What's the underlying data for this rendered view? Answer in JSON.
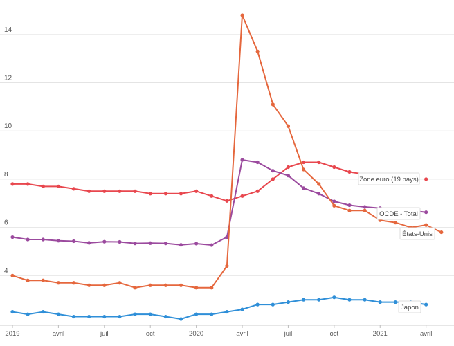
{
  "chart_data": {
    "type": "line",
    "title": "",
    "xlabel": "",
    "ylabel": "",
    "grid": true,
    "ylim": [
      2,
      15.2
    ],
    "y_ticks": [
      4,
      6,
      8,
      10,
      12,
      14
    ],
    "x_tick_labels": [
      {
        "m": 0,
        "label": "2019"
      },
      {
        "m": 3,
        "label": "avril"
      },
      {
        "m": 6,
        "label": "juil"
      },
      {
        "m": 9,
        "label": "oct"
      },
      {
        "m": 12,
        "label": "2020"
      },
      {
        "m": 15,
        "label": "avril"
      },
      {
        "m": 18,
        "label": "juil"
      },
      {
        "m": 21,
        "label": "oct"
      },
      {
        "m": 24,
        "label": "2021"
      },
      {
        "m": 27,
        "label": "avril"
      }
    ],
    "x_months": [
      0,
      1,
      2,
      3,
      4,
      5,
      6,
      7,
      8,
      9,
      10,
      11,
      12,
      13,
      14,
      15,
      16,
      17,
      18,
      19,
      20,
      21,
      22,
      23,
      24,
      25,
      26,
      27,
      28
    ],
    "series": [
      {
        "name": "Zone euro (19 pays)",
        "color": "#e8474e",
        "values": [
          7.8,
          7.8,
          7.7,
          7.7,
          7.6,
          7.5,
          7.5,
          7.5,
          7.5,
          7.4,
          7.4,
          7.4,
          7.5,
          7.3,
          7.1,
          7.3,
          7.5,
          8.0,
          8.5,
          8.7,
          8.7,
          8.5,
          8.3,
          8.2,
          8.1,
          8.0,
          null,
          8.0,
          null
        ]
      },
      {
        "name": "OCDE - Total",
        "color": "#9b4a9e",
        "values": [
          5.6,
          5.5,
          5.5,
          5.45,
          5.43,
          5.36,
          5.41,
          5.4,
          5.34,
          5.35,
          5.34,
          5.28,
          5.33,
          5.27,
          5.6,
          8.8,
          8.7,
          8.35,
          8.15,
          7.63,
          7.4,
          7.08,
          6.92,
          6.85,
          6.8,
          6.75,
          6.7,
          6.63,
          null
        ]
      },
      {
        "name": "États-Unis",
        "color": "#e5673d",
        "values": [
          4.0,
          3.8,
          3.8,
          3.7,
          3.7,
          3.6,
          3.6,
          3.7,
          3.5,
          3.6,
          3.6,
          3.6,
          3.5,
          3.5,
          4.4,
          14.8,
          13.3,
          11.1,
          10.2,
          8.4,
          7.8,
          6.9,
          6.7,
          6.7,
          6.3,
          6.2,
          6.0,
          6.1,
          5.8
        ]
      },
      {
        "name": "Japon",
        "color": "#2f8fd8",
        "values": [
          2.5,
          2.4,
          2.5,
          2.4,
          2.3,
          2.3,
          2.3,
          2.3,
          2.4,
          2.4,
          2.3,
          2.2,
          2.4,
          2.4,
          2.5,
          2.6,
          2.8,
          2.8,
          2.9,
          3.0,
          3.0,
          3.1,
          3.0,
          3.0,
          2.9,
          2.9,
          2.9,
          2.8,
          null
        ]
      }
    ]
  }
}
